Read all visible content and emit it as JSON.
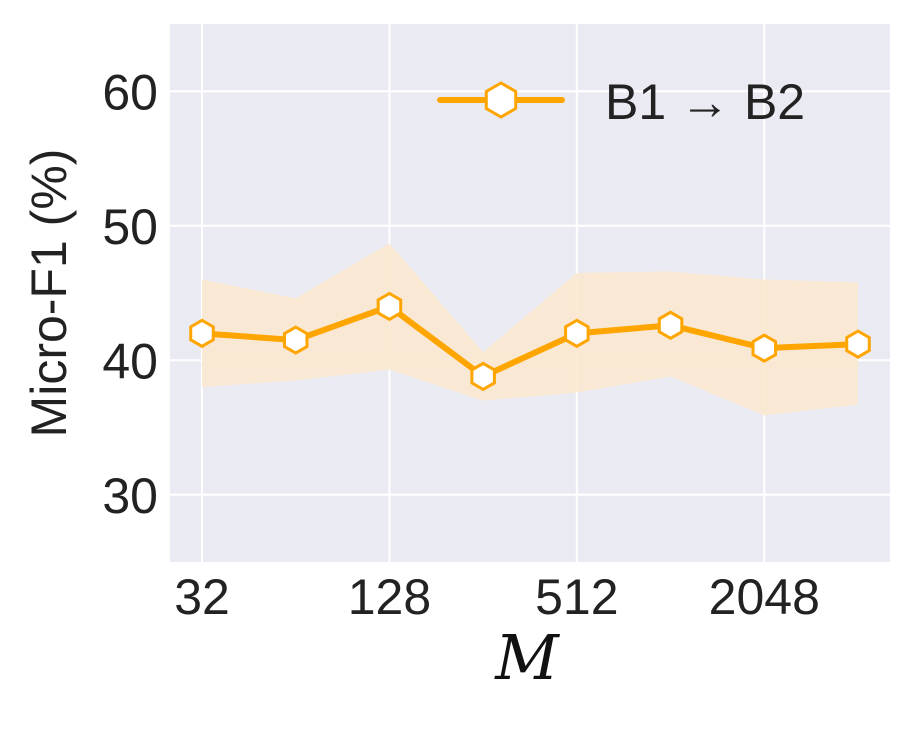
{
  "chart_data": {
    "type": "line",
    "title": "",
    "xlabel": "M",
    "ylabel": "Micro-F1 (%)",
    "x_scale": "log2",
    "x": [
      32,
      64,
      128,
      256,
      512,
      1024,
      2048,
      4096
    ],
    "xticks": [
      32,
      128,
      512,
      2048
    ],
    "xtick_labels": [
      "32",
      "128",
      "512",
      "2048"
    ],
    "ylim": [
      25,
      65
    ],
    "yticks": [
      30,
      40,
      50,
      60
    ],
    "ytick_labels": [
      "30",
      "40",
      "50",
      "60"
    ],
    "grid": true,
    "legend_position": "top-right",
    "series": [
      {
        "name": "B1 → B2",
        "values": [
          42.0,
          41.5,
          44.0,
          38.8,
          42.0,
          42.6,
          40.9,
          41.2
        ],
        "lower": [
          38.0,
          38.5,
          39.3,
          37.0,
          37.6,
          38.8,
          35.9,
          36.7
        ],
        "upper": [
          46.0,
          44.6,
          48.7,
          40.6,
          46.5,
          46.6,
          46.0,
          45.8
        ],
        "color": "#FFA500",
        "band_color": "#FBE8CF",
        "marker": "hexagon-open"
      }
    ]
  },
  "style": {
    "plot_background": "#EAEAF2",
    "grid_color": "#FFFFFF"
  }
}
